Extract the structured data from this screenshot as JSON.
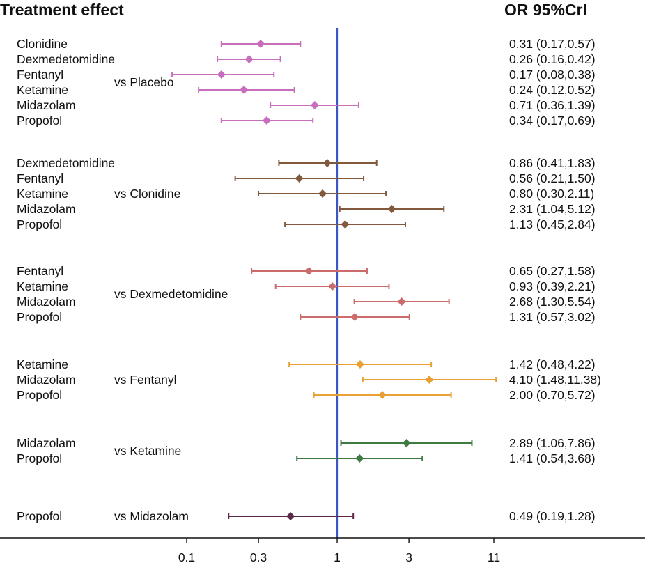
{
  "colors": {
    "ref_line": "#3a57c4",
    "axis": "#111111",
    "vs Placebo": "#c76fbd",
    "vs Clonidine": "#82593a",
    "vs Dexmedetomidine": "#cb6b6b",
    "vs Fentanyl": "#e9a034",
    "vs Ketamine": "#3f7a43",
    "vs Midazolam": "#5a2a46"
  },
  "chart_data": {
    "type": "forest",
    "left_header": "Treatment effect",
    "right_header": "OR 95%CrI",
    "x_scale": "log",
    "xlim": [
      0.1,
      11
    ],
    "reference_value": 1,
    "ticks": [
      {
        "value": 0.1,
        "label": "0.1"
      },
      {
        "value": 0.3,
        "label": "0.3"
      },
      {
        "value": 1,
        "label": "1"
      },
      {
        "value": 3,
        "label": "3"
      },
      {
        "value": 11,
        "label": "11"
      }
    ],
    "groups": [
      {
        "comparator": "vs Placebo",
        "rows": [
          {
            "treatment": "Clonidine",
            "or": 0.31,
            "lo": 0.17,
            "hi": 0.57,
            "text": "0.31 (0.17,0.57)"
          },
          {
            "treatment": "Dexmedetomidine",
            "or": 0.26,
            "lo": 0.16,
            "hi": 0.42,
            "text": "0.26 (0.16,0.42)"
          },
          {
            "treatment": "Fentanyl",
            "or": 0.17,
            "lo": 0.08,
            "hi": 0.38,
            "text": "0.17 (0.08,0.38)"
          },
          {
            "treatment": "Ketamine",
            "or": 0.24,
            "lo": 0.12,
            "hi": 0.52,
            "text": "0.24 (0.12,0.52)"
          },
          {
            "treatment": "Midazolam",
            "or": 0.71,
            "lo": 0.36,
            "hi": 1.39,
            "text": "0.71 (0.36,1.39)"
          },
          {
            "treatment": "Propofol",
            "or": 0.34,
            "lo": 0.17,
            "hi": 0.69,
            "text": "0.34 (0.17,0.69)"
          }
        ]
      },
      {
        "comparator": "vs Clonidine",
        "rows": [
          {
            "treatment": "Dexmedetomidine",
            "or": 0.86,
            "lo": 0.41,
            "hi": 1.83,
            "text": "0.86 (0.41,1.83)"
          },
          {
            "treatment": "Fentanyl",
            "or": 0.56,
            "lo": 0.21,
            "hi": 1.5,
            "text": "0.56 (0.21,1.50)"
          },
          {
            "treatment": "Ketamine",
            "or": 0.8,
            "lo": 0.3,
            "hi": 2.11,
            "text": "0.80 (0.30,2.11)"
          },
          {
            "treatment": "Midazolam",
            "or": 2.31,
            "lo": 1.04,
            "hi": 5.12,
            "text": "2.31 (1.04,5.12)"
          },
          {
            "treatment": "Propofol",
            "or": 1.13,
            "lo": 0.45,
            "hi": 2.84,
            "text": "1.13 (0.45,2.84)"
          }
        ]
      },
      {
        "comparator": "vs Dexmedetomidine",
        "rows": [
          {
            "treatment": "Fentanyl",
            "or": 0.65,
            "lo": 0.27,
            "hi": 1.58,
            "text": "0.65 (0.27,1.58)"
          },
          {
            "treatment": "Ketamine",
            "or": 0.93,
            "lo": 0.39,
            "hi": 2.21,
            "text": "0.93 (0.39,2.21)"
          },
          {
            "treatment": "Midazolam",
            "or": 2.68,
            "lo": 1.3,
            "hi": 5.54,
            "text": "2.68 (1.30,5.54)"
          },
          {
            "treatment": "Propofol",
            "or": 1.31,
            "lo": 0.57,
            "hi": 3.02,
            "text": "1.31 (0.57,3.02)"
          }
        ]
      },
      {
        "comparator": "vs Fentanyl",
        "rows": [
          {
            "treatment": "Ketamine",
            "or": 1.42,
            "lo": 0.48,
            "hi": 4.22,
            "text": "1.42 (0.48,4.22)"
          },
          {
            "treatment": "Midazolam",
            "or": 4.1,
            "lo": 1.48,
            "hi": 11.38,
            "text": "4.10 (1.48,11.38)"
          },
          {
            "treatment": "Propofol",
            "or": 2.0,
            "lo": 0.7,
            "hi": 5.72,
            "text": "2.00 (0.70,5.72)"
          }
        ]
      },
      {
        "comparator": "vs Ketamine",
        "rows": [
          {
            "treatment": "Midazolam",
            "or": 2.89,
            "lo": 1.06,
            "hi": 7.86,
            "text": "2.89 (1.06,7.86)"
          },
          {
            "treatment": "Propofol",
            "or": 1.41,
            "lo": 0.54,
            "hi": 3.68,
            "text": "1.41 (0.54,3.68)"
          }
        ]
      },
      {
        "comparator": "vs Midazolam",
        "rows": [
          {
            "treatment": "Propofol",
            "or": 0.49,
            "lo": 0.19,
            "hi": 1.28,
            "text": "0.49 (0.19,1.28)"
          }
        ]
      }
    ]
  }
}
